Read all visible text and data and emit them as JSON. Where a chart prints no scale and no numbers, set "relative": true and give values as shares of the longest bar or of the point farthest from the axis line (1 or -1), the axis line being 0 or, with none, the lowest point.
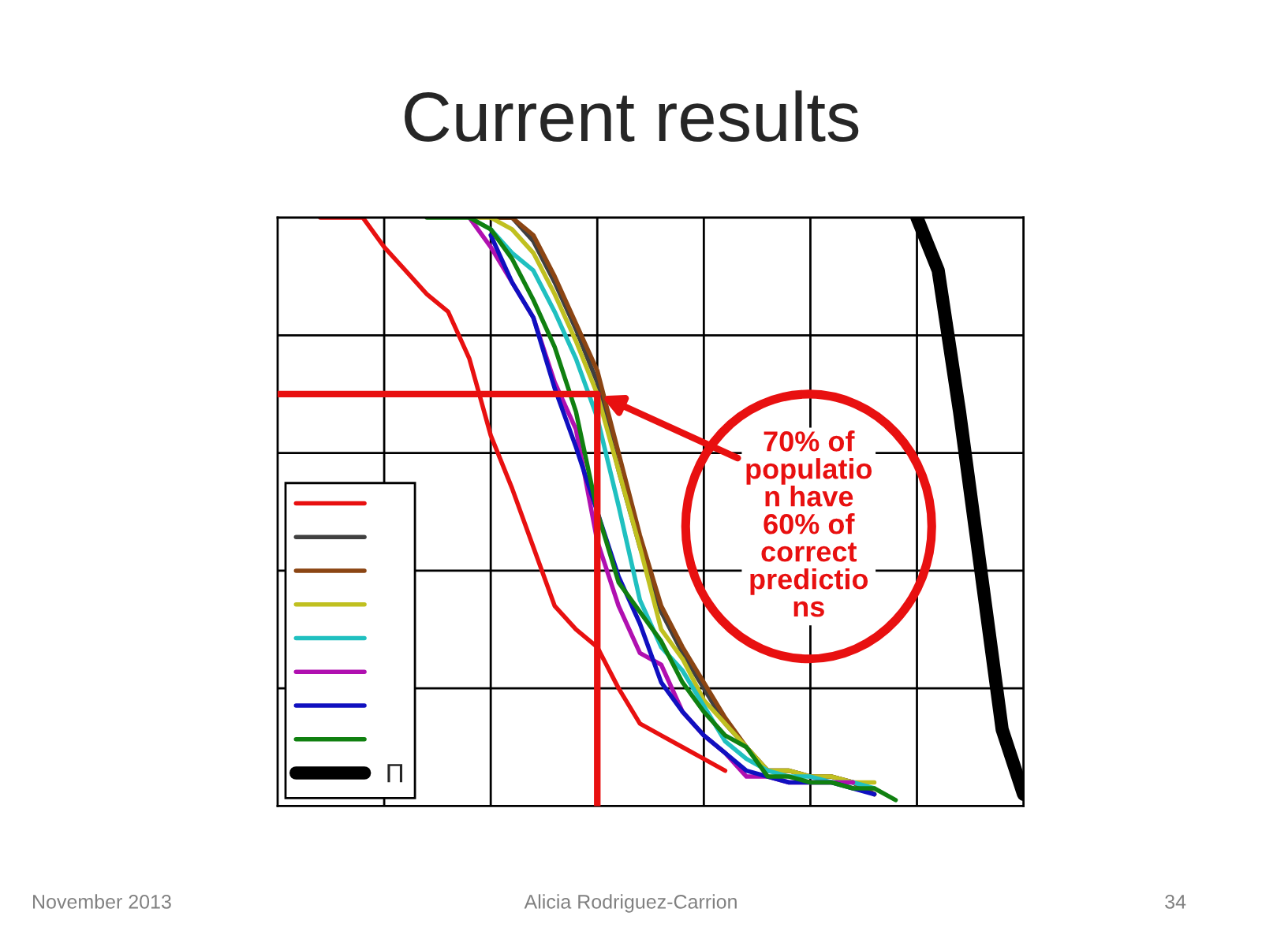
{
  "chart_data": {
    "type": "line",
    "title": "Current results",
    "relative": true,
    "categories": [
      null,
      null,
      null,
      null,
      null,
      null,
      null,
      null,
      null,
      null,
      null,
      null,
      null,
      null,
      null,
      null,
      null,
      null,
      null,
      null,
      null,
      null,
      null,
      null,
      null,
      null,
      null,
      null,
      null,
      null,
      null,
      null,
      null,
      null,
      null,
      null
    ],
    "grid": true,
    "legend": "bottom left",
    "marker": "none",
    "line_style": "solid",
    "ref_lines": [
      {
        "axis": "y",
        "value": 0.7,
        "color": "#e81010"
      }
    ],
    "annotations": [
      "70% of\npopulatio\nn have\n60% of\ncorrect\npredictio\nns",
      "November 2013",
      "Alicia Rodriguez-Carrion",
      "34"
    ],
    "series": [
      {
        "color": "#e81010",
        "values": [
          null,
          null,
          1,
          1,
          1,
          0.95,
          0.91,
          0.87,
          0.84,
          0.76,
          0.63,
          0.54,
          0.44,
          0.34,
          0.3,
          0.27,
          0.2,
          0.14,
          0.12,
          0.1,
          0.08,
          0.06,
          null,
          null,
          null,
          null,
          null,
          null,
          null,
          null,
          null,
          null,
          null,
          null,
          null,
          null
        ]
      },
      {
        "color": "#404040",
        "values": [
          null,
          null,
          null,
          null,
          null,
          null,
          null,
          null,
          null,
          null,
          1,
          1,
          0.96,
          0.89,
          0.81,
          0.72,
          0.57,
          0.44,
          0.33,
          0.26,
          0.2,
          0.14,
          0.1,
          0.06,
          0.06,
          0.05,
          0.05,
          0.04,
          0.02,
          null,
          null,
          null,
          null,
          null,
          null,
          null
        ]
      },
      {
        "color": "#8b4513",
        "values": [
          null,
          null,
          null,
          null,
          null,
          null,
          null,
          null,
          null,
          null,
          1,
          1,
          0.97,
          0.9,
          0.82,
          0.74,
          0.6,
          0.46,
          0.34,
          0.27,
          0.21,
          0.15,
          0.1,
          0.06,
          0.06,
          0.05,
          0.05,
          0.04,
          0.02,
          null,
          null,
          null,
          null,
          null,
          null,
          null
        ]
      },
      {
        "color": "#c0c020",
        "values": [
          null,
          null,
          null,
          null,
          null,
          null,
          null,
          null,
          null,
          1,
          1,
          0.98,
          0.94,
          0.87,
          0.79,
          0.7,
          0.57,
          0.44,
          0.3,
          0.25,
          0.18,
          0.14,
          0.1,
          0.06,
          0.06,
          0.05,
          0.05,
          0.04,
          0.04,
          null,
          null,
          null,
          null,
          null,
          null,
          null
        ]
      },
      {
        "color": "#20c0c0",
        "values": [
          null,
          null,
          null,
          null,
          null,
          null,
          null,
          null,
          null,
          1,
          0.98,
          0.94,
          0.91,
          0.84,
          0.76,
          0.66,
          0.51,
          0.35,
          0.27,
          0.23,
          0.17,
          0.11,
          0.08,
          0.06,
          0.05,
          0.05,
          0.04,
          0.04,
          0.03,
          null,
          null,
          null,
          null,
          null,
          null,
          null
        ]
      },
      {
        "color": "#b010b0",
        "values": [
          null,
          null,
          null,
          null,
          null,
          null,
          null,
          null,
          null,
          1,
          0.95,
          0.89,
          0.83,
          0.72,
          0.64,
          0.45,
          0.34,
          0.26,
          0.24,
          0.16,
          0.12,
          0.09,
          0.05,
          0.05,
          0.04,
          0.04,
          0.04,
          0.04,
          null,
          null,
          null,
          null,
          null,
          null,
          null,
          null
        ]
      },
      {
        "color": "#1010c0",
        "values": [
          null,
          null,
          null,
          null,
          null,
          null,
          null,
          null,
          null,
          null,
          0.97,
          0.89,
          0.83,
          0.71,
          0.61,
          0.5,
          0.39,
          0.31,
          0.21,
          0.16,
          0.12,
          0.09,
          0.06,
          0.05,
          0.04,
          0.04,
          0.04,
          0.03,
          0.02,
          null,
          null,
          null,
          null,
          null,
          null,
          null
        ]
      },
      {
        "color": "#108010",
        "values": [
          null,
          null,
          null,
          null,
          null,
          null,
          null,
          1,
          1,
          1,
          0.98,
          0.93,
          0.86,
          0.78,
          0.67,
          0.5,
          0.38,
          0.33,
          0.28,
          0.21,
          0.16,
          0.12,
          0.1,
          0.05,
          0.05,
          0.04,
          0.04,
          0.03,
          0.03,
          0.01,
          null,
          null,
          null,
          null,
          null,
          null
        ]
      },
      {
        "name": "Π",
        "color": "#000000",
        "values": [
          null,
          null,
          null,
          null,
          null,
          null,
          null,
          null,
          null,
          null,
          null,
          null,
          null,
          null,
          null,
          null,
          null,
          null,
          null,
          null,
          null,
          null,
          null,
          null,
          null,
          null,
          null,
          null,
          null,
          null,
          1,
          0.91,
          0.67,
          0.4,
          0.13,
          0.02
        ]
      }
    ]
  }
}
